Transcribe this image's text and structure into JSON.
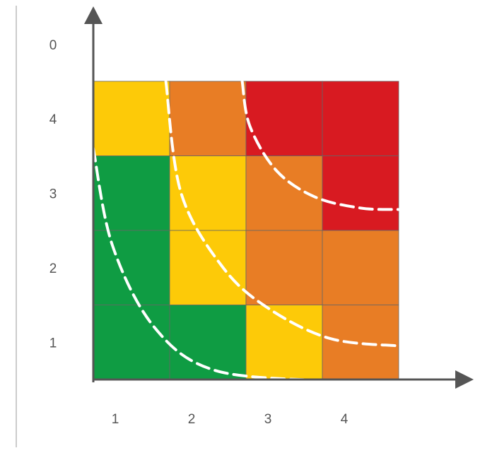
{
  "chart_data": {
    "type": "heatmap",
    "title": "",
    "xlabel": "",
    "ylabel": "",
    "x_categories": [
      "1",
      "2",
      "3",
      "4"
    ],
    "y_categories": [
      "1",
      "2",
      "3",
      "4"
    ],
    "y_top_tick": "0",
    "palette": {
      "green": "#0f9c43",
      "yellow": "#fdca08",
      "orange": "#e87d25",
      "red": "#d81a21"
    },
    "axis_color": "#555555",
    "left_rule_color": "#bbbbbb",
    "grid": true,
    "cells": [
      {
        "x": 1,
        "y": 1,
        "level": "green"
      },
      {
        "x": 2,
        "y": 1,
        "level": "green"
      },
      {
        "x": 3,
        "y": 1,
        "level": "yellow"
      },
      {
        "x": 4,
        "y": 1,
        "level": "orange"
      },
      {
        "x": 1,
        "y": 2,
        "level": "green"
      },
      {
        "x": 2,
        "y": 2,
        "level": "yellow"
      },
      {
        "x": 3,
        "y": 2,
        "level": "orange"
      },
      {
        "x": 4,
        "y": 2,
        "level": "orange"
      },
      {
        "x": 1,
        "y": 3,
        "level": "green"
      },
      {
        "x": 2,
        "y": 3,
        "level": "yellow"
      },
      {
        "x": 3,
        "y": 3,
        "level": "orange"
      },
      {
        "x": 4,
        "y": 3,
        "level": "red"
      },
      {
        "x": 1,
        "y": 4,
        "level": "yellow"
      },
      {
        "x": 2,
        "y": 4,
        "level": "orange"
      },
      {
        "x": 3,
        "y": 4,
        "level": "red"
      },
      {
        "x": 4,
        "y": 4,
        "level": "red"
      }
    ],
    "boundaries": [
      {
        "points": [
          [
            0.5,
            3.6
          ],
          [
            0.75,
            2.3
          ],
          [
            1.3,
            1.2
          ],
          [
            2.1,
            0.62
          ],
          [
            3.6,
            0.48
          ]
        ]
      },
      {
        "points": [
          [
            1.45,
            4.5
          ],
          [
            1.65,
            3.0
          ],
          [
            2.2,
            2.0
          ],
          [
            2.8,
            1.45
          ],
          [
            3.6,
            1.05
          ],
          [
            4.5,
            0.95
          ]
        ]
      },
      {
        "points": [
          [
            2.45,
            4.5
          ],
          [
            2.55,
            3.9
          ],
          [
            2.9,
            3.3
          ],
          [
            3.4,
            2.95
          ],
          [
            4.0,
            2.8
          ],
          [
            4.5,
            2.78
          ]
        ]
      }
    ],
    "boundary_style": {
      "color": "#ffffff",
      "dash": "18 9"
    }
  }
}
